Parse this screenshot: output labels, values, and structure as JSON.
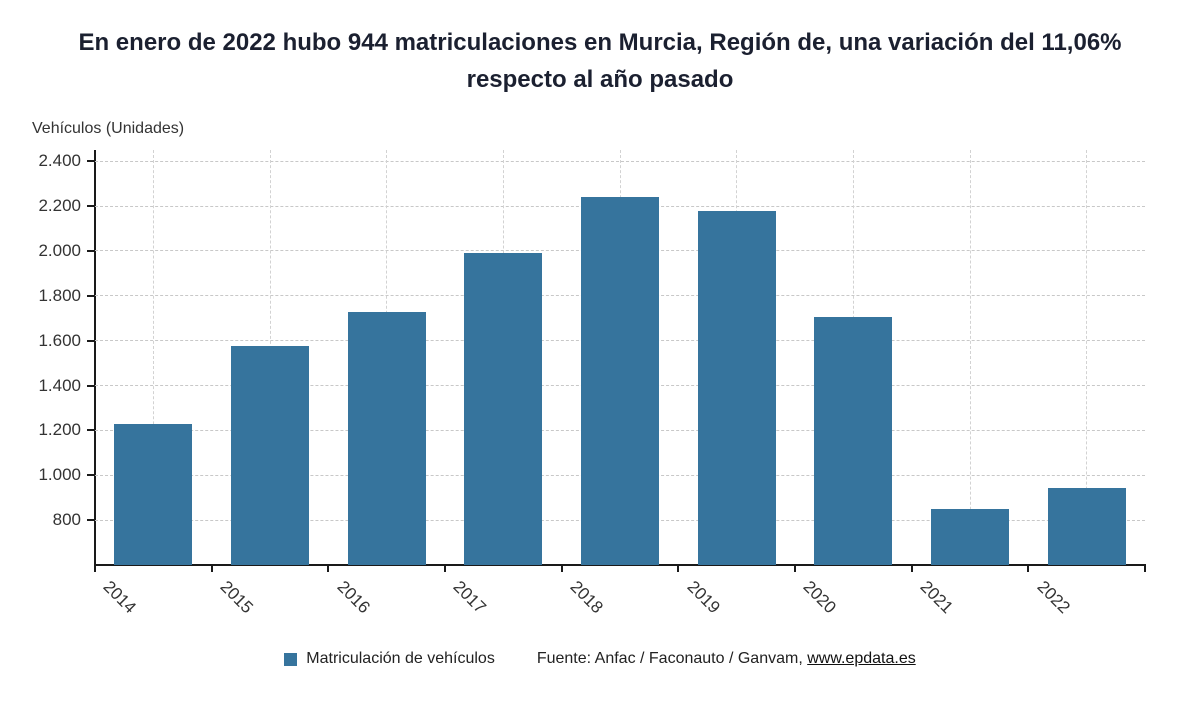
{
  "title": "En enero de 2022 hubo 944 matriculaciones en Murcia, Región de, una variación del 11,06% respecto al año pasado",
  "y_axis_title": "Vehículos (Unidades)",
  "legend": {
    "label": "Matriculación de vehículos",
    "color": "#36749d"
  },
  "source": {
    "prefix": "Fuente: Anfac / Faconauto / Ganvam, ",
    "link": "www.epdata.es"
  },
  "chart_data": {
    "type": "bar",
    "title": "En enero de 2022 hubo 944 matriculaciones en Murcia, Región de, una variación del 11,06% respecto al año pasado",
    "categories": [
      "2014",
      "2015",
      "2016",
      "2017",
      "2018",
      "2019",
      "2020",
      "2021",
      "2022"
    ],
    "series": [
      {
        "name": "Matriculación de vehículos",
        "values": [
          1230,
          1575,
          1730,
          1990,
          2240,
          2180,
          1705,
          850,
          944
        ]
      }
    ],
    "xlabel": "",
    "ylabel": "Vehículos (Unidades)",
    "ylim": [
      600,
      2450
    ],
    "yticks": [
      800,
      1000,
      1200,
      1400,
      1600,
      1800,
      2000,
      2200,
      2400
    ],
    "ytick_labels": [
      "800",
      "1.000",
      "1.200",
      "1.400",
      "1.600",
      "1.800",
      "2.000",
      "2.200",
      "2.400"
    ],
    "grid": "dashed",
    "legend_position": "bottom",
    "bar_color": "#36749d"
  }
}
